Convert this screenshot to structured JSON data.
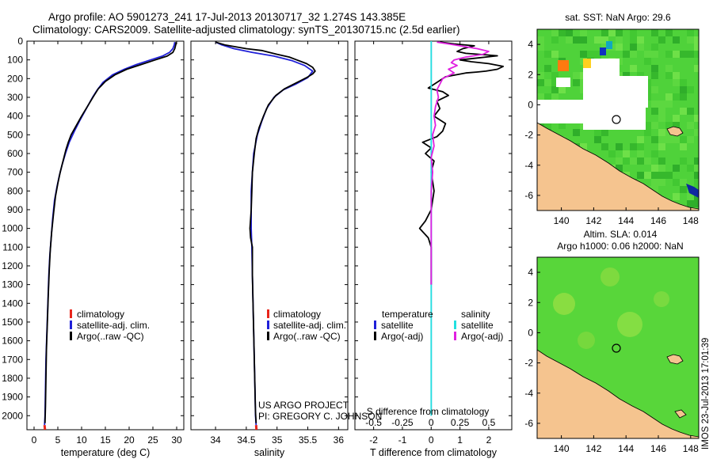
{
  "header": {
    "line1": "Argo profile: AO 5901273_241 17-Jul-2013 20130717_32 1.274S 143.385E",
    "line2": "Climatology: CARS2009. Satellite-adjusted climatology: synTS_20130715.nc (2.5d earlier)"
  },
  "credit": {
    "line1": "US ARGO PROJECT",
    "line2": "PI: GREGORY C. JOHNSON"
  },
  "stamp": "IMOS 23-Jul-2013 17:01:39",
  "colors": {
    "climatology": "#e8251b",
    "satellite": "#2020d8",
    "argo": "#000000",
    "sal_satellite": "#22e0e0",
    "sal_argo": "#e020e0",
    "land": "#f5c48f",
    "ocean": "#4fd23a",
    "missing": "#ffffff"
  },
  "chart_data": [
    {
      "id": "temperature",
      "type": "line",
      "xlabel": "temperature (deg C)",
      "xlim": [
        -1.5,
        31.5
      ],
      "xticks": [
        0,
        5,
        10,
        15,
        20,
        25,
        30
      ],
      "ylim": [
        2075,
        0
      ],
      "yticks": [
        0,
        100,
        200,
        300,
        400,
        500,
        600,
        700,
        800,
        900,
        1000,
        1100,
        1200,
        1300,
        1400,
        1500,
        1600,
        1700,
        1800,
        1900,
        2000
      ],
      "legend": [
        "climatology",
        "satellite-adj. clim.",
        "Argo(..raw -QC)"
      ],
      "series": [
        {
          "name": "climatology",
          "color_key": "climatology",
          "points": [
            [
              2.2,
              2050
            ],
            [
              2.3,
              2075
            ]
          ]
        },
        {
          "name": "satellite-adj. clim.",
          "color_key": "satellite",
          "points": [
            [
              29.6,
              5
            ],
            [
              29.5,
              20
            ],
            [
              29.2,
              40
            ],
            [
              28.5,
              60
            ],
            [
              27,
              80
            ],
            [
              24.5,
              100
            ],
            [
              21.5,
              125
            ],
            [
              19,
              150
            ],
            [
              16.5,
              180
            ],
            [
              14.5,
              220
            ],
            [
              13.3,
              260
            ],
            [
              12.3,
              300
            ],
            [
              11,
              360
            ],
            [
              9.7,
              420
            ],
            [
              8.5,
              480
            ],
            [
              7.4,
              540
            ],
            [
              6.6,
              600
            ],
            [
              5.9,
              660
            ],
            [
              5.3,
              720
            ],
            [
              4.8,
              780
            ],
            [
              4.3,
              850
            ],
            [
              3.9,
              950
            ],
            [
              3.6,
              1050
            ],
            [
              3.3,
              1150
            ],
            [
              3.1,
              1250
            ],
            [
              2.9,
              1400
            ],
            [
              2.7,
              1550
            ],
            [
              2.5,
              1700
            ],
            [
              2.4,
              1850
            ],
            [
              2.3,
              2000
            ],
            [
              2.2,
              2050
            ]
          ]
        },
        {
          "name": "Argo(..raw -QC)",
          "color_key": "argo",
          "points": [
            [
              29.9,
              5
            ],
            [
              29.8,
              20
            ],
            [
              29.6,
              40
            ],
            [
              29.2,
              60
            ],
            [
              28,
              80
            ],
            [
              25.5,
              100
            ],
            [
              22.5,
              125
            ],
            [
              19.5,
              150
            ],
            [
              17,
              180
            ],
            [
              15,
              215
            ],
            [
              13.5,
              255
            ],
            [
              12.5,
              295
            ],
            [
              11.2,
              350
            ],
            [
              10,
              400
            ],
            [
              8.9,
              450
            ],
            [
              7.8,
              500
            ],
            [
              7.2,
              540
            ],
            [
              6.7,
              580
            ],
            [
              6.1,
              640
            ],
            [
              5.5,
              700
            ],
            [
              5.0,
              760
            ],
            [
              4.5,
              830
            ],
            [
              4.1,
              920
            ],
            [
              3.7,
              1020
            ],
            [
              3.4,
              1120
            ],
            [
              3.2,
              1220
            ],
            [
              3.0,
              1350
            ],
            [
              2.8,
              1500
            ],
            [
              2.6,
              1650
            ],
            [
              2.5,
              1800
            ],
            [
              2.4,
              1950
            ],
            [
              2.3,
              2040
            ]
          ]
        }
      ]
    },
    {
      "id": "salinity",
      "type": "line",
      "xlabel": "salinity",
      "xlim": [
        33.6,
        36.15
      ],
      "xticks": [
        34,
        34.5,
        35,
        35.5,
        36
      ],
      "ylim": [
        2075,
        0
      ],
      "legend": [
        "climatology",
        "satellite-adj. clim.",
        "Argo(..raw -QC)"
      ],
      "series": [
        {
          "name": "climatology",
          "color_key": "climatology",
          "points": [
            [
              34.66,
              2050
            ],
            [
              34.665,
              2075
            ]
          ]
        },
        {
          "name": "satellite-adj. clim.",
          "color_key": "satellite",
          "points": [
            [
              34.0,
              5
            ],
            [
              34.1,
              20
            ],
            [
              34.3,
              40
            ],
            [
              34.6,
              60
            ],
            [
              34.95,
              80
            ],
            [
              35.25,
              105
            ],
            [
              35.45,
              130
            ],
            [
              35.58,
              160
            ],
            [
              35.5,
              195
            ],
            [
              35.3,
              230
            ],
            [
              35.1,
              260
            ],
            [
              34.95,
              300
            ],
            [
              34.83,
              360
            ],
            [
              34.75,
              430
            ],
            [
              34.68,
              500
            ],
            [
              34.62,
              600
            ],
            [
              34.6,
              700
            ],
            [
              34.58,
              800
            ],
            [
              34.58,
              900
            ],
            [
              34.58,
              1000
            ],
            [
              34.59,
              1100
            ],
            [
              34.6,
              1250
            ],
            [
              34.61,
              1400
            ],
            [
              34.62,
              1550
            ],
            [
              34.63,
              1700
            ],
            [
              34.64,
              1850
            ],
            [
              34.65,
              2000
            ],
            [
              34.66,
              2050
            ]
          ]
        },
        {
          "name": "Argo(..raw -QC)",
          "color_key": "argo",
          "points": [
            [
              34.0,
              5
            ],
            [
              34.15,
              20
            ],
            [
              34.5,
              40
            ],
            [
              34.75,
              50
            ],
            [
              34.85,
              58
            ],
            [
              35.0,
              70
            ],
            [
              35.2,
              85
            ],
            [
              35.32,
              100
            ],
            [
              35.48,
              120
            ],
            [
              35.58,
              140
            ],
            [
              35.62,
              160
            ],
            [
              35.58,
              175
            ],
            [
              35.48,
              195
            ],
            [
              35.3,
              225
            ],
            [
              35.12,
              255
            ],
            [
              34.98,
              290
            ],
            [
              34.86,
              340
            ],
            [
              34.78,
              400
            ],
            [
              34.71,
              460
            ],
            [
              34.66,
              520
            ],
            [
              34.63,
              600
            ],
            [
              34.6,
              700
            ],
            [
              34.59,
              800
            ],
            [
              34.58,
              900
            ],
            [
              34.56,
              1000
            ],
            [
              34.57,
              1050
            ],
            [
              34.6,
              1100
            ],
            [
              34.6,
              1250
            ],
            [
              34.61,
              1400
            ],
            [
              34.62,
              1550
            ],
            [
              34.63,
              1700
            ],
            [
              34.64,
              1850
            ],
            [
              34.65,
              1980
            ],
            [
              34.66,
              2040
            ]
          ]
        }
      ]
    },
    {
      "id": "difference",
      "type": "line",
      "xlabel": "T difference from climatology",
      "xlabel_top": "S difference from climatology",
      "xlim": [
        -2.65,
        2.8
      ],
      "xticks": [
        -2,
        -1,
        0,
        1,
        2
      ],
      "xticks_top_labels": [
        "-0.5",
        "-0.25",
        "0",
        "0.25",
        "0.5"
      ],
      "ylim": [
        2075,
        0
      ],
      "legend_temperature": {
        "title": "temperature",
        "items": [
          "satellite",
          "Argo(-adj)"
        ]
      },
      "legend_salinity": {
        "title": "salinity",
        "items": [
          "satellite",
          "Argo(-adj)"
        ]
      },
      "series": [
        {
          "name": "T satellite",
          "color_key": "satellite",
          "points": [
            [
              0,
              0
            ],
            [
              0,
              2000
            ]
          ]
        },
        {
          "name": "T Argo(-adj)",
          "color_key": "argo",
          "points": [
            [
              0.3,
              5
            ],
            [
              0.8,
              15
            ],
            [
              1.5,
              25
            ],
            [
              1.1,
              40
            ],
            [
              0.9,
              55
            ],
            [
              1.2,
              65
            ],
            [
              1.8,
              72
            ],
            [
              2.3,
              78
            ],
            [
              1.6,
              90
            ],
            [
              1.0,
              100
            ],
            [
              1.4,
              110
            ],
            [
              2.0,
              120
            ],
            [
              2.5,
              135
            ],
            [
              2.3,
              150
            ],
            [
              1.9,
              160
            ],
            [
              1.6,
              165
            ],
            [
              1.2,
              170
            ],
            [
              0.5,
              190
            ],
            [
              0.2,
              220
            ],
            [
              -0.1,
              250
            ],
            [
              0.4,
              270
            ],
            [
              0.6,
              290
            ],
            [
              0.2,
              320
            ],
            [
              0.3,
              360
            ],
            [
              0.1,
              400
            ],
            [
              0.5,
              440
            ],
            [
              0.4,
              480
            ],
            [
              0.2,
              510
            ],
            [
              -0.3,
              540
            ],
            [
              0.0,
              570
            ],
            [
              -0.2,
              600
            ],
            [
              0.1,
              640
            ],
            [
              0.0,
              700
            ],
            [
              0.1,
              800
            ],
            [
              0.0,
              900
            ],
            [
              -0.2,
              960
            ],
            [
              -0.4,
              1000
            ],
            [
              -0.1,
              1050
            ],
            [
              0.0,
              1100
            ],
            [
              0.0,
              1200
            ],
            [
              0.0,
              1300
            ]
          ]
        },
        {
          "name": "S satellite",
          "color_key": "sal_satellite",
          "points": [
            [
              0,
              0
            ],
            [
              0,
              2000
            ]
          ]
        },
        {
          "name": "S Argo(-adj)",
          "color_key": "sal_argo",
          "points": [
            [
              0.2,
              5
            ],
            [
              0.6,
              15
            ],
            [
              1.0,
              25
            ],
            [
              1.6,
              40
            ],
            [
              2.0,
              55
            ],
            [
              1.8,
              70
            ],
            [
              1.2,
              85
            ],
            [
              0.8,
              100
            ],
            [
              0.7,
              115
            ],
            [
              0.9,
              130
            ],
            [
              0.6,
              150
            ],
            [
              0.8,
              170
            ],
            [
              0.4,
              200
            ],
            [
              0.3,
              230
            ],
            [
              0.2,
              260
            ],
            [
              0.25,
              300
            ],
            [
              0.15,
              350
            ],
            [
              0.1,
              400
            ],
            [
              0.15,
              450
            ],
            [
              0.05,
              500
            ],
            [
              0.1,
              560
            ],
            [
              0.0,
              620
            ],
            [
              0.05,
              700
            ],
            [
              0.0,
              800
            ],
            [
              0.0,
              900
            ],
            [
              0.0,
              1000
            ],
            [
              0.0,
              1100
            ],
            [
              0.0,
              1200
            ],
            [
              0.0,
              1300
            ]
          ]
        }
      ]
    },
    {
      "id": "sst_map",
      "type": "heatmap",
      "title": "sat. SST: NaN Argo: 29.6",
      "xlim": [
        138.5,
        148.5
      ],
      "ylim": [
        -7,
        5
      ],
      "xticks": [
        140,
        142,
        144,
        146,
        148
      ],
      "yticks": [
        4,
        2,
        0,
        -2,
        -4,
        -6
      ],
      "profile_location": [
        143.385,
        -1.274
      ]
    },
    {
      "id": "sla_map",
      "type": "heatmap",
      "title": "Altim. SLA: 0.014",
      "title2": "Argo h1000: 0.06 h2000: NaN",
      "xlim": [
        138.5,
        148.5
      ],
      "ylim": [
        -7,
        5
      ],
      "xticks": [
        140,
        142,
        144,
        146,
        148
      ],
      "yticks": [
        4,
        2,
        0,
        -2,
        -4,
        -6
      ],
      "profile_location": [
        143.385,
        -1.274
      ]
    }
  ]
}
